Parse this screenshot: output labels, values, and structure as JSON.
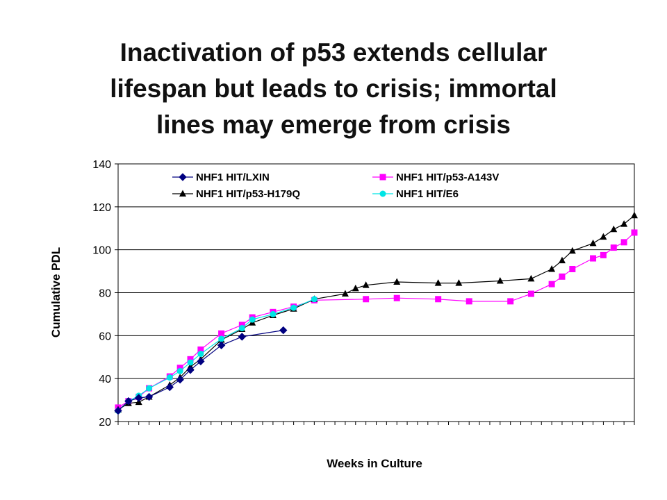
{
  "title_lines": [
    "Inactivation of p53 extends cellular",
    "lifespan but leads to crisis; immortal",
    "lines may emerge from crisis"
  ],
  "chart_data": {
    "type": "line",
    "title": "",
    "xlabel": "Weeks in Culture",
    "ylabel": "Cumulative PDL",
    "ylim": [
      20,
      140
    ],
    "yticks": [
      20,
      40,
      60,
      80,
      100,
      120,
      140
    ],
    "xlim": [
      0,
      50
    ],
    "grid": "horizontal",
    "legend": "top",
    "series": [
      {
        "name": "NHF1 HIT/LXIN",
        "color": "#000080",
        "marker": "diamond",
        "x": [
          0,
          1,
          2,
          3,
          5,
          6,
          7,
          8,
          10,
          12,
          16
        ],
        "y": [
          25,
          29.5,
          31,
          31.5,
          36,
          39.5,
          44,
          48,
          55.5,
          59.5,
          62.5
        ]
      },
      {
        "name": "NHF1 HIT/p53-A143V",
        "color": "#ff00ff",
        "marker": "square",
        "x": [
          0,
          1,
          2,
          3,
          5,
          6,
          7,
          8,
          10,
          12,
          13,
          15,
          17,
          19,
          24,
          27,
          31,
          34,
          38,
          40,
          42,
          43,
          44,
          46,
          47,
          48,
          49,
          50
        ],
        "y": [
          26.5,
          29.5,
          31.5,
          35.5,
          41,
          45,
          49,
          53.5,
          61,
          65,
          68.5,
          71,
          73.5,
          76.5,
          77,
          77.5,
          77,
          76,
          76,
          79.5,
          84,
          87.5,
          91,
          96,
          97.5,
          101,
          103.5,
          108
        ]
      },
      {
        "name": "NHF1 HIT/p53-H179Q",
        "color": "#000000",
        "marker": "triangle",
        "x": [
          0,
          1,
          2,
          3,
          5,
          6,
          7,
          8,
          10,
          12,
          13,
          15,
          17,
          19,
          22,
          23,
          24,
          27,
          31,
          33,
          37,
          40,
          42,
          43,
          44,
          46,
          47,
          48,
          49,
          50
        ],
        "y": [
          25.5,
          28.5,
          29,
          31.5,
          37,
          40.5,
          45.5,
          49,
          58,
          63,
          66,
          69.5,
          72.5,
          77,
          79.5,
          82,
          83.5,
          85,
          84.5,
          84.5,
          85.5,
          86.5,
          91,
          95,
          99.5,
          103,
          106,
          109.5,
          112,
          116
        ]
      },
      {
        "name": "NHF1 HIT/E6",
        "color": "#00e5e5",
        "marker": "circle",
        "x": [
          0,
          1,
          2,
          3,
          5,
          6,
          7,
          8,
          10,
          12,
          13,
          15,
          17,
          19
        ],
        "y": [
          25,
          29.5,
          32,
          35.5,
          40.5,
          43.5,
          47.5,
          51.5,
          58.5,
          63.5,
          67.5,
          70,
          73,
          77
        ]
      }
    ]
  }
}
